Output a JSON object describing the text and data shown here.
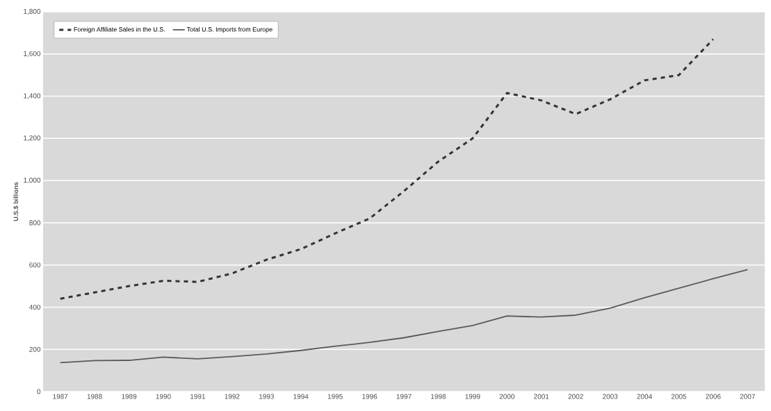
{
  "chart_data": {
    "type": "line",
    "ylabel": "U.S.$ billions",
    "categories": [
      "1987",
      "1988",
      "1989",
      "1990",
      "1991",
      "1992",
      "1993",
      "1994",
      "1995",
      "1996",
      "1997",
      "1998",
      "1999",
      "2000",
      "2001",
      "2002",
      "2003",
      "2004",
      "2005",
      "2006",
      "2007"
    ],
    "series": [
      {
        "name": "Foreign Affiliate Sales in the U.S.",
        "color": "#333333",
        "line_style": "dashed",
        "values": [
          440,
          470,
          500,
          525,
          520,
          560,
          625,
          675,
          750,
          820,
          950,
          1090,
          1200,
          1415,
          1380,
          1315,
          1385,
          1475,
          1500,
          1670,
          null
        ]
      },
      {
        "name": "Total U.S. Imports from Europe",
        "color": "#595959",
        "line_style": "solid",
        "values": [
          137,
          147,
          148,
          163,
          155,
          166,
          178,
          195,
          215,
          233,
          255,
          285,
          313,
          358,
          353,
          362,
          395,
          445,
          490,
          535,
          578
        ]
      }
    ],
    "ylim": [
      0,
      1800
    ],
    "yticks": [
      0,
      200,
      400,
      600,
      800,
      {
        "value": 1000,
        "label": "1,000"
      },
      {
        "value": 1200,
        "label": "1,200"
      },
      {
        "value": 1400,
        "label": "1,400"
      },
      {
        "value": 1600,
        "label": "1,600"
      },
      {
        "value": 1800,
        "label": "1,800"
      }
    ],
    "grid": "y",
    "legend": "top left"
  }
}
